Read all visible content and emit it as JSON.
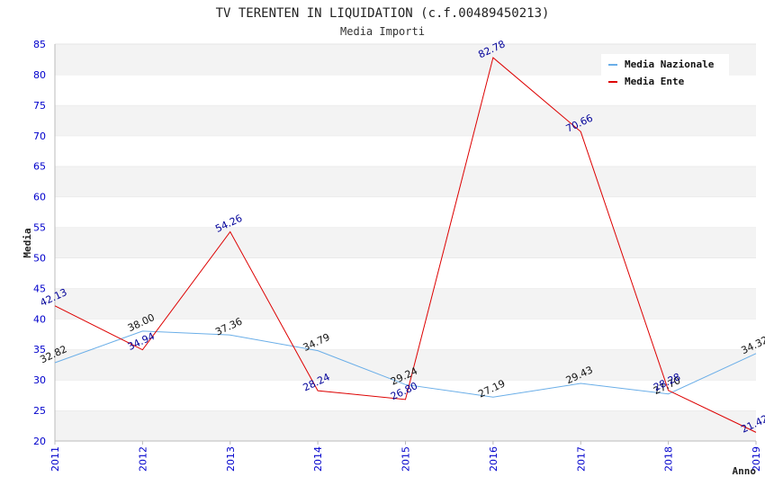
{
  "chart_data": {
    "type": "line",
    "title": "TV TERENTEN IN LIQUIDATION (c.f.00489450213)",
    "subtitle": "Media Importi",
    "xlabel": "Anno",
    "ylabel": "Media",
    "categories": [
      "2011",
      "2012",
      "2013",
      "2014",
      "2015",
      "2016",
      "2017",
      "2018",
      "2019"
    ],
    "ylim": [
      20,
      85
    ],
    "yticks": [
      20,
      25,
      30,
      35,
      40,
      45,
      50,
      55,
      60,
      65,
      70,
      75,
      80,
      85
    ],
    "grid": "horizontal bands",
    "legend_position": "top-right",
    "series": [
      {
        "name": "Media Nazionale",
        "color": "#6aaee8",
        "label_color": "#111111",
        "values": [
          32.82,
          38.0,
          37.36,
          34.79,
          29.24,
          27.19,
          29.43,
          27.7,
          34.32
        ],
        "labels": [
          "32.82",
          "38.00",
          "37.36",
          "34.79",
          "29.24",
          "27.19",
          "29.43",
          "27.70",
          "34.32"
        ]
      },
      {
        "name": "Media Ente",
        "color": "#dd0000",
        "label_color": "#000099",
        "values": [
          42.13,
          34.94,
          54.26,
          28.24,
          26.8,
          82.78,
          70.66,
          28.28,
          21.42
        ],
        "labels": [
          "42.13",
          "34.94",
          "54.26",
          "28.24",
          "26.80",
          "82.78",
          "70.66",
          "28.28",
          "21.42"
        ]
      }
    ]
  }
}
